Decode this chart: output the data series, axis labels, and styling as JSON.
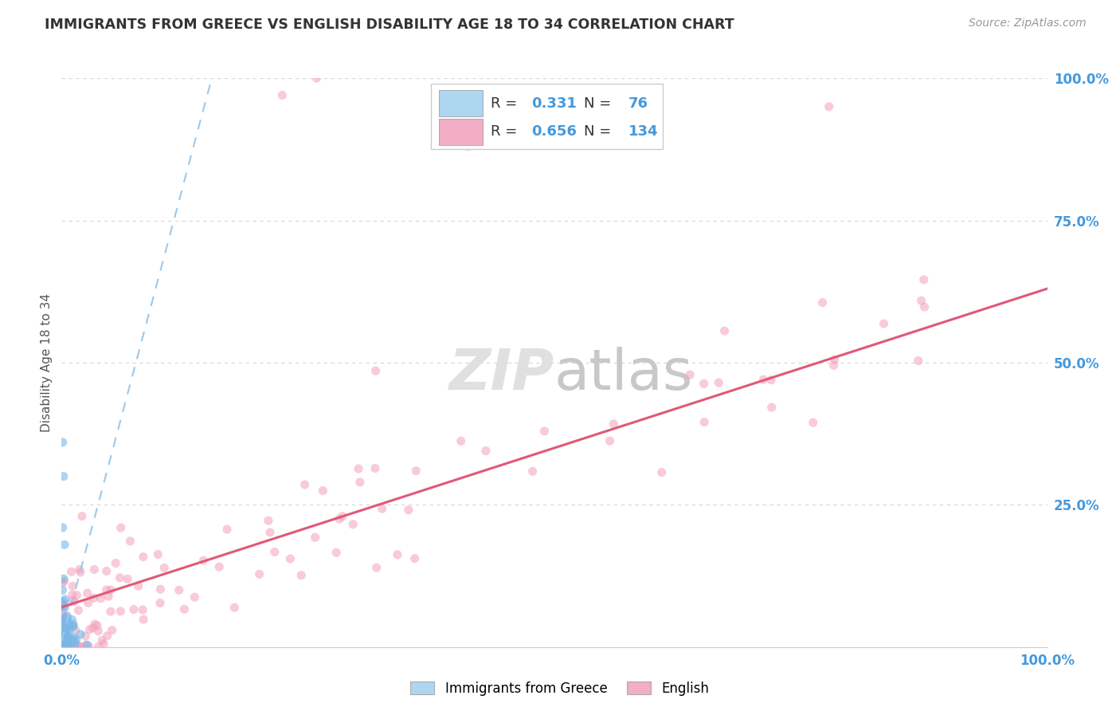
{
  "title": "IMMIGRANTS FROM GREECE VS ENGLISH DISABILITY AGE 18 TO 34 CORRELATION CHART",
  "source": "Source: ZipAtlas.com",
  "ylabel": "Disability Age 18 to 34",
  "legend1_color": "#aed6f1",
  "legend2_color": "#f1aec5",
  "legend1_label": "Immigrants from Greece",
  "legend2_label": "English",
  "R1": 0.331,
  "N1": 76,
  "R2": 0.656,
  "N2": 134,
  "bg_color": "#ffffff",
  "grid_color": "#cccccc",
  "blue_scatter_color": "#7ab8e8",
  "pink_scatter_color": "#f4a0bc",
  "blue_line_color": "#9ec8e8",
  "pink_line_color": "#e05878",
  "title_color": "#333333",
  "axis_label_color": "#4499dd",
  "source_color": "#999999"
}
